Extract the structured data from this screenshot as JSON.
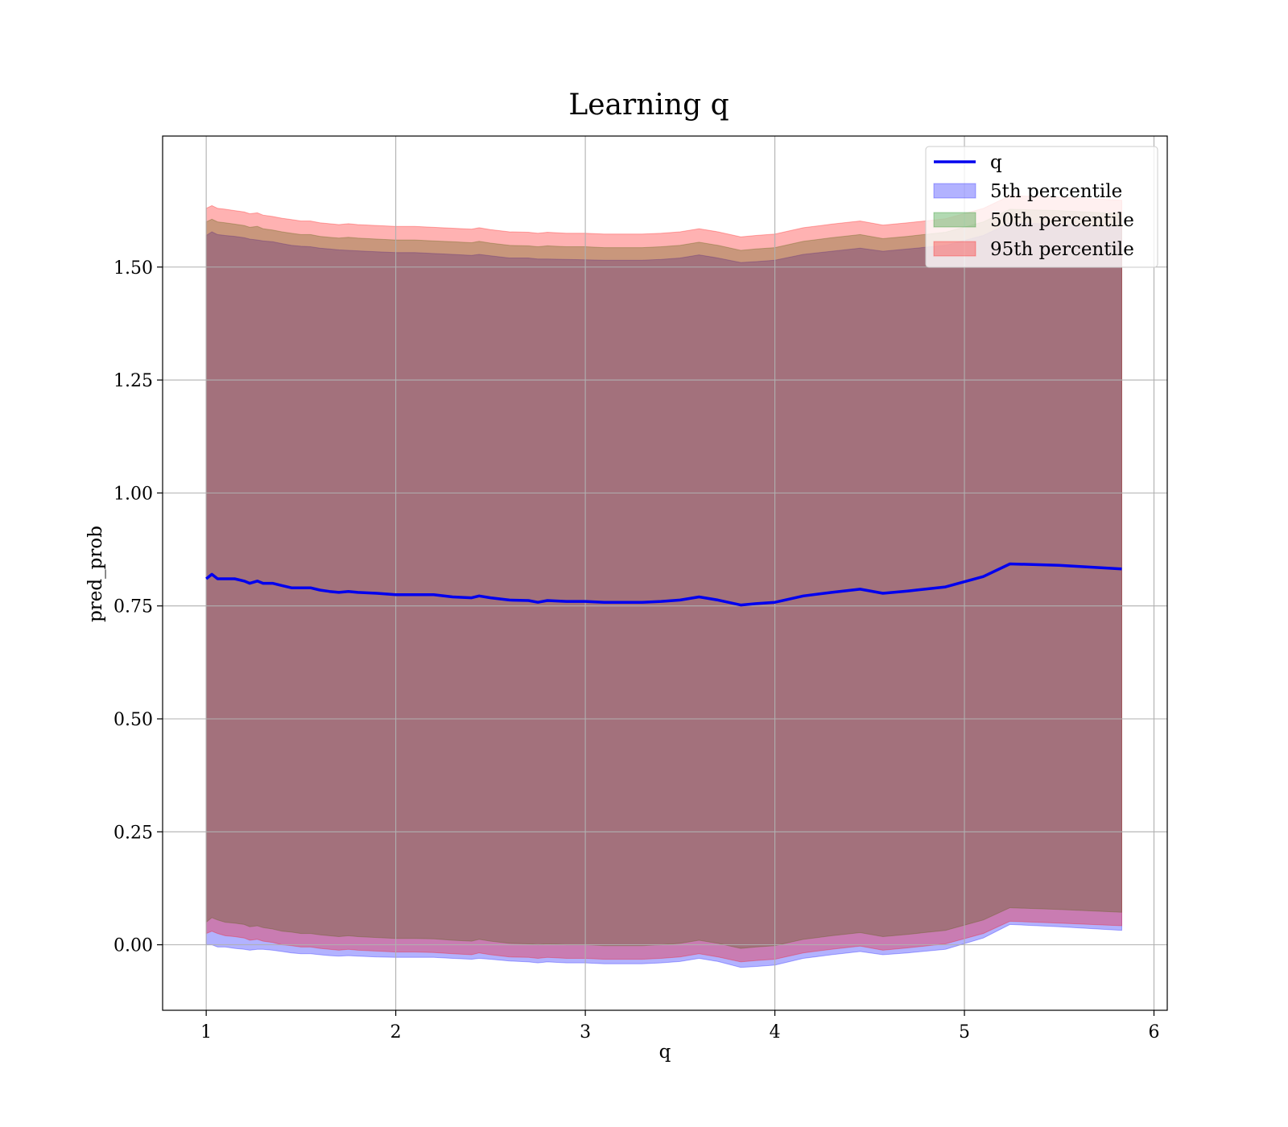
{
  "chart_data": {
    "type": "area",
    "title": "Learning q",
    "xlabel": "q",
    "ylabel": "pred_prob",
    "xlim": [
      0.77,
      6.07
    ],
    "ylim": [
      -0.145,
      1.79
    ],
    "x_ticks": [
      1,
      2,
      3,
      4,
      5,
      6
    ],
    "x_tick_labels": [
      "1",
      "2",
      "3",
      "4",
      "5",
      "6"
    ],
    "y_ticks": [
      0.0,
      0.25,
      0.5,
      0.75,
      1.0,
      1.25,
      1.5
    ],
    "y_tick_labels": [
      "0.00",
      "0.25",
      "0.50",
      "0.75",
      "1.00",
      "1.25",
      "1.50"
    ],
    "grid": true,
    "legend_position": "top-right",
    "x": [
      1.0,
      1.03,
      1.06,
      1.1,
      1.15,
      1.2,
      1.23,
      1.27,
      1.3,
      1.35,
      1.4,
      1.45,
      1.5,
      1.55,
      1.6,
      1.65,
      1.7,
      1.75,
      1.8,
      1.9,
      2.0,
      2.1,
      2.2,
      2.3,
      2.4,
      2.44,
      2.5,
      2.6,
      2.7,
      2.75,
      2.8,
      2.9,
      3.0,
      3.1,
      3.2,
      3.3,
      3.4,
      3.5,
      3.6,
      3.7,
      3.82,
      3.9,
      4.0,
      4.15,
      4.3,
      4.45,
      4.57,
      4.7,
      4.9,
      5.1,
      5.24,
      5.5,
      5.83
    ],
    "series": [
      {
        "name": "q",
        "kind": "line",
        "color": "#0000ee",
        "values": [
          0.81,
          0.82,
          0.81,
          0.81,
          0.81,
          0.805,
          0.8,
          0.805,
          0.8,
          0.8,
          0.795,
          0.79,
          0.79,
          0.79,
          0.785,
          0.782,
          0.78,
          0.782,
          0.78,
          0.778,
          0.775,
          0.775,
          0.775,
          0.77,
          0.768,
          0.772,
          0.768,
          0.763,
          0.762,
          0.758,
          0.762,
          0.76,
          0.76,
          0.758,
          0.758,
          0.758,
          0.76,
          0.763,
          0.77,
          0.763,
          0.752,
          0.755,
          0.758,
          0.772,
          0.78,
          0.787,
          0.778,
          0.783,
          0.792,
          0.815,
          0.843,
          0.84,
          0.832
        ]
      },
      {
        "name": "5th percentile",
        "kind": "band",
        "color": "#0000ff",
        "lower": [
          0.0,
          0.0,
          -0.005,
          -0.005,
          -0.008,
          -0.01,
          -0.012,
          -0.01,
          -0.01,
          -0.012,
          -0.015,
          -0.018,
          -0.02,
          -0.02,
          -0.022,
          -0.024,
          -0.025,
          -0.024,
          -0.025,
          -0.027,
          -0.028,
          -0.028,
          -0.028,
          -0.03,
          -0.032,
          -0.03,
          -0.032,
          -0.036,
          -0.038,
          -0.04,
          -0.038,
          -0.04,
          -0.04,
          -0.042,
          -0.042,
          -0.042,
          -0.04,
          -0.037,
          -0.03,
          -0.037,
          -0.05,
          -0.048,
          -0.045,
          -0.03,
          -0.022,
          -0.015,
          -0.022,
          -0.018,
          -0.01,
          0.015,
          0.045,
          0.04,
          0.032
        ],
        "upper": [
          1.57,
          1.578,
          1.572,
          1.57,
          1.568,
          1.565,
          1.562,
          1.56,
          1.558,
          1.556,
          1.552,
          1.548,
          1.546,
          1.545,
          1.542,
          1.54,
          1.538,
          1.537,
          1.536,
          1.534,
          1.532,
          1.532,
          1.53,
          1.528,
          1.526,
          1.528,
          1.525,
          1.52,
          1.52,
          1.518,
          1.518,
          1.517,
          1.516,
          1.515,
          1.515,
          1.515,
          1.517,
          1.52,
          1.527,
          1.52,
          1.51,
          1.512,
          1.515,
          1.528,
          1.535,
          1.542,
          1.535,
          1.54,
          1.548,
          1.57,
          1.598,
          1.595,
          1.588
        ]
      },
      {
        "name": "50th percentile",
        "kind": "band",
        "color": "#008000",
        "lower": [
          0.05,
          0.06,
          0.055,
          0.05,
          0.048,
          0.045,
          0.04,
          0.042,
          0.038,
          0.035,
          0.03,
          0.028,
          0.025,
          0.025,
          0.022,
          0.02,
          0.018,
          0.02,
          0.018,
          0.016,
          0.014,
          0.014,
          0.013,
          0.01,
          0.008,
          0.012,
          0.008,
          0.003,
          0.002,
          0.0,
          0.002,
          0.0,
          0.0,
          -0.002,
          -0.002,
          -0.002,
          0.0,
          0.003,
          0.01,
          0.003,
          -0.008,
          -0.005,
          -0.002,
          0.012,
          0.02,
          0.027,
          0.018,
          0.023,
          0.032,
          0.055,
          0.082,
          0.078,
          0.072
        ],
        "upper": [
          1.6,
          1.606,
          1.6,
          1.598,
          1.595,
          1.592,
          1.588,
          1.59,
          1.585,
          1.582,
          1.578,
          1.575,
          1.572,
          1.572,
          1.568,
          1.566,
          1.564,
          1.566,
          1.564,
          1.562,
          1.56,
          1.56,
          1.558,
          1.556,
          1.554,
          1.557,
          1.553,
          1.548,
          1.547,
          1.545,
          1.547,
          1.545,
          1.545,
          1.543,
          1.543,
          1.543,
          1.545,
          1.548,
          1.555,
          1.548,
          1.537,
          1.54,
          1.543,
          1.557,
          1.565,
          1.572,
          1.563,
          1.568,
          1.577,
          1.6,
          1.628,
          1.625,
          1.618
        ]
      },
      {
        "name": "95th percentile",
        "kind": "band",
        "color": "#ff0000",
        "lower": [
          0.025,
          0.03,
          0.025,
          0.02,
          0.018,
          0.015,
          0.01,
          0.012,
          0.008,
          0.005,
          0.0,
          -0.002,
          -0.005,
          -0.005,
          -0.008,
          -0.01,
          -0.012,
          -0.01,
          -0.012,
          -0.014,
          -0.016,
          -0.016,
          -0.017,
          -0.02,
          -0.022,
          -0.018,
          -0.022,
          -0.027,
          -0.028,
          -0.03,
          -0.028,
          -0.03,
          -0.03,
          -0.032,
          -0.032,
          -0.032,
          -0.03,
          -0.027,
          -0.02,
          -0.027,
          -0.038,
          -0.035,
          -0.032,
          -0.018,
          -0.01,
          -0.003,
          -0.012,
          -0.007,
          0.002,
          0.025,
          0.052,
          0.048,
          0.042
        ],
        "upper": [
          1.63,
          1.636,
          1.63,
          1.628,
          1.625,
          1.622,
          1.618,
          1.62,
          1.615,
          1.612,
          1.608,
          1.605,
          1.602,
          1.602,
          1.598,
          1.596,
          1.594,
          1.596,
          1.594,
          1.592,
          1.59,
          1.59,
          1.588,
          1.586,
          1.584,
          1.587,
          1.583,
          1.578,
          1.577,
          1.575,
          1.577,
          1.575,
          1.575,
          1.573,
          1.573,
          1.573,
          1.575,
          1.578,
          1.585,
          1.578,
          1.567,
          1.57,
          1.573,
          1.587,
          1.595,
          1.602,
          1.593,
          1.598,
          1.607,
          1.63,
          1.658,
          1.655,
          1.648
        ]
      }
    ]
  }
}
